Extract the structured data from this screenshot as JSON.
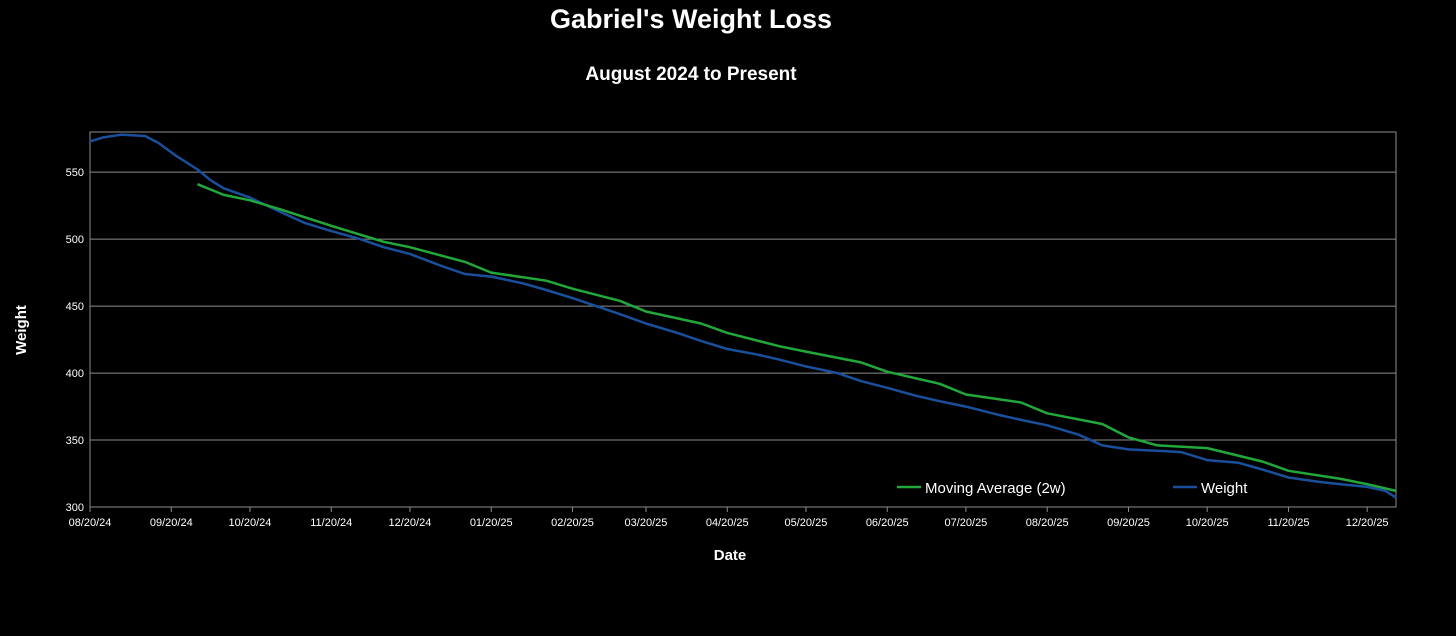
{
  "chart_data": {
    "type": "line",
    "title": "Gabriel's Weight Loss",
    "subtitle": "August 2024 to Present",
    "xlabel": "Date",
    "ylabel": "Weight",
    "x_range": [
      "08/20/24",
      "12/31/25"
    ],
    "ylim": [
      300,
      580
    ],
    "y_ticks": [
      300,
      350,
      400,
      450,
      500,
      550
    ],
    "x_ticks": [
      "08/20/24",
      "09/20/24",
      "10/20/24",
      "11/20/24",
      "12/20/24",
      "01/20/25",
      "02/20/25",
      "03/20/25",
      "04/20/25",
      "05/20/25",
      "06/20/25",
      "07/20/25",
      "08/20/25",
      "09/20/25",
      "10/20/25",
      "11/20/25",
      "12/20/25"
    ],
    "grid": "horizontal",
    "legend_position": "bottom-right",
    "colors": {
      "background": "#000000",
      "grid": "#8c8c8c",
      "weight": "#1a4f9c",
      "moving_average": "#22a83a"
    },
    "series": [
      {
        "name": "Moving Average (2w)",
        "dates": [
          "09/30/24",
          "10/10/24",
          "10/20/24",
          "11/01/24",
          "11/20/24",
          "12/10/24",
          "12/20/24",
          "01/10/25",
          "01/20/25",
          "02/10/25",
          "02/20/25",
          "03/10/25",
          "03/20/25",
          "04/10/25",
          "04/20/25",
          "05/10/25",
          "05/20/25",
          "06/10/25",
          "06/20/25",
          "07/10/25",
          "07/20/25",
          "08/10/25",
          "08/20/25",
          "09/10/25",
          "09/20/25",
          "10/01/25",
          "10/20/25",
          "11/10/25",
          "11/20/25",
          "12/10/25",
          "12/20/25",
          "12/31/25"
        ],
        "values": [
          541,
          533,
          529,
          522,
          510,
          498,
          494,
          483,
          475,
          469,
          463,
          454,
          446,
          437,
          430,
          420,
          416,
          408,
          401,
          392,
          384,
          378,
          370,
          362,
          352,
          346,
          344,
          334,
          327,
          321,
          317,
          312
        ]
      },
      {
        "name": "Weight",
        "dates": [
          "08/20/24",
          "08/25/24",
          "09/01/24",
          "09/10/24",
          "09/15/24",
          "09/22/24",
          "09/30/24",
          "10/05/24",
          "10/10/24",
          "10/20/24",
          "11/01/24",
          "11/10/24",
          "11/20/24",
          "12/01/24",
          "12/10/24",
          "12/20/24",
          "01/01/25",
          "01/10/25",
          "01/20/25",
          "02/01/25",
          "02/10/25",
          "02/20/25",
          "03/01/25",
          "03/10/25",
          "03/20/25",
          "04/01/25",
          "04/10/25",
          "04/20/25",
          "05/01/25",
          "05/10/25",
          "05/20/25",
          "06/01/25",
          "06/10/25",
          "06/20/25",
          "07/01/25",
          "07/10/25",
          "07/20/25",
          "08/01/25",
          "08/10/25",
          "08/20/25",
          "09/01/25",
          "09/10/25",
          "09/20/25",
          "10/01/25",
          "10/10/25",
          "10/20/25",
          "11/01/25",
          "11/10/25",
          "11/20/25",
          "12/01/25",
          "12/10/25",
          "12/20/25",
          "12/27/25",
          "12/31/25"
        ],
        "values": [
          573,
          576,
          578,
          577,
          572,
          562,
          552,
          544,
          538,
          531,
          520,
          512,
          506,
          500,
          494,
          489,
          480,
          474,
          472,
          467,
          462,
          456,
          450,
          444,
          437,
          430,
          424,
          418,
          414,
          410,
          405,
          400,
          394,
          389,
          383,
          379,
          375,
          369,
          365,
          361,
          354,
          346,
          343,
          342,
          341,
          335,
          333,
          328,
          322,
          319,
          317,
          315,
          312,
          307
        ]
      }
    ]
  }
}
